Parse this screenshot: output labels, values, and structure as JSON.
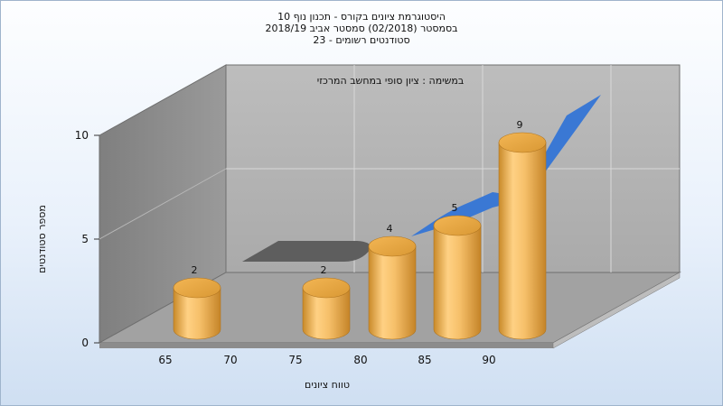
{
  "chart_data": {
    "type": "bar",
    "title_lines": [
      "היסטוגרמת ציונים בקורס - תכנון נוף 10",
      "בסמסטר  (02/2018)  סמסטר אביב 2018/19",
      "סטודנטים רשומים - 23"
    ],
    "subtitle": "במשימה : ציון סופי במחשב המרכזי",
    "xlabel": "טווח ציונים",
    "ylabel": "מספר סטודנטים",
    "x_ticks": [
      "65",
      "70",
      "75",
      "80",
      "85",
      "90"
    ],
    "y_ticks": [
      0,
      5,
      10
    ],
    "ylim": [
      0,
      10
    ],
    "categories": [
      "65",
      "70",
      "75",
      "80",
      "85",
      "90"
    ],
    "values": [
      2,
      0,
      2,
      4,
      5,
      9
    ],
    "value_labels": [
      "2",
      "",
      "2",
      "4",
      "5",
      "9"
    ],
    "grid": true,
    "colors": {
      "bar": "#f0b24e",
      "back_wall": "#b5b5b5",
      "side_wall": "#8a8a8a",
      "floor": "#9d9d9d",
      "area_gray": "#5e5e5e",
      "area_blue": "#3a78d4"
    }
  }
}
